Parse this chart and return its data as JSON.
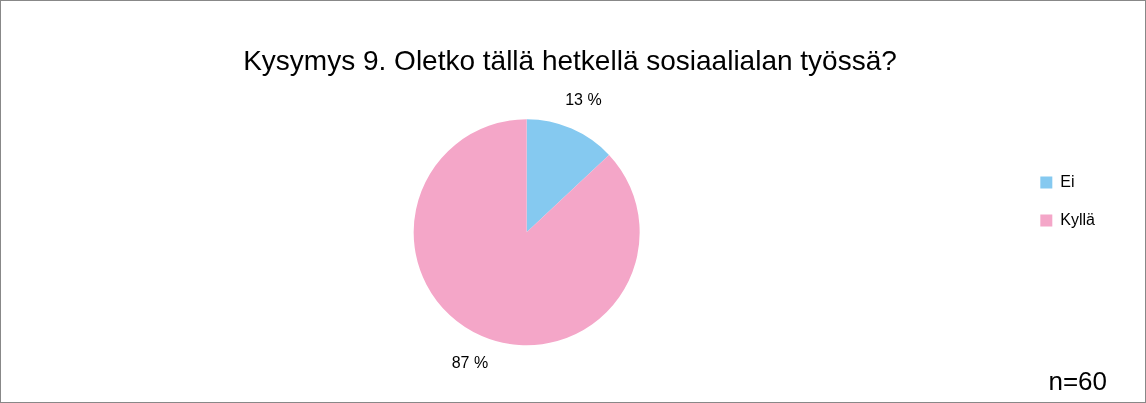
{
  "chart_data": {
    "type": "pie",
    "title": "Kysymys 9. Oletko tällä hetkellä sosiaalialan työssä?",
    "categories": [
      "Ei",
      "Kyllä"
    ],
    "values": [
      13,
      87
    ],
    "colors": [
      "#85c9f0",
      "#f4a6c8"
    ],
    "value_labels": [
      "13 %",
      "87 %"
    ],
    "legend": "right",
    "annotations": [
      "n=60"
    ]
  }
}
